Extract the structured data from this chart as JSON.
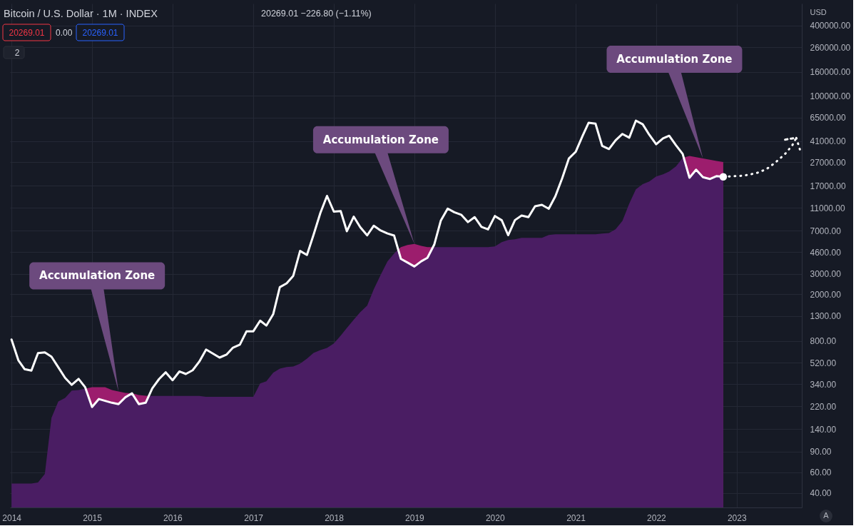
{
  "chart_data": {
    "type": "line",
    "title": "Bitcoin / U.S. Dollar · 1M · INDEX",
    "ylabel": "USD",
    "log": "y",
    "grid": true,
    "line_style": "solid",
    "marker": "none",
    "xlim": [
      "2013-12-25",
      "2023-10-23"
    ],
    "xticks": [
      "2014",
      "2015",
      "2016",
      "2017",
      "2018",
      "2019",
      "2020",
      "2021",
      "2022",
      "2023"
    ],
    "ylim": [
      30,
      615000
    ],
    "yticks": [
      {
        "value": 40,
        "label": "40.00"
      },
      {
        "value": 60,
        "label": "60.00"
      },
      {
        "value": 90,
        "label": "90.00"
      },
      {
        "value": 140,
        "label": "140.00"
      },
      {
        "value": 220,
        "label": "220.00"
      },
      {
        "value": 340,
        "label": "340.00"
      },
      {
        "value": 520,
        "label": "520.00"
      },
      {
        "value": 800,
        "label": "800.00"
      },
      {
        "value": 1300,
        "label": "1300.00"
      },
      {
        "value": 2000,
        "label": "2000.00"
      },
      {
        "value": 3000,
        "label": "3000.00"
      },
      {
        "value": 4600,
        "label": "4600.00"
      },
      {
        "value": 7000,
        "label": "7000.00"
      },
      {
        "value": 11000,
        "label": "11000.00"
      },
      {
        "value": 17000,
        "label": "17000.00"
      },
      {
        "value": 27000,
        "label": "27000.00"
      },
      {
        "value": 41000,
        "label": "41000.00"
      },
      {
        "value": 65000,
        "label": "65000.00"
      },
      {
        "value": 100000,
        "label": "100000.00"
      },
      {
        "value": 160000,
        "label": "160000.00"
      },
      {
        "value": 260000,
        "label": "260000.00"
      },
      {
        "value": 400000,
        "label": "400000.00"
      }
    ],
    "x": [
      "2014-01",
      "2014-02",
      "2014-03",
      "2014-04",
      "2014-05",
      "2014-06",
      "2014-07",
      "2014-08",
      "2014-09",
      "2014-10",
      "2014-11",
      "2014-12",
      "2015-01",
      "2015-02",
      "2015-03",
      "2015-04",
      "2015-05",
      "2015-06",
      "2015-07",
      "2015-08",
      "2015-09",
      "2015-10",
      "2015-11",
      "2015-12",
      "2016-01",
      "2016-02",
      "2016-03",
      "2016-04",
      "2016-05",
      "2016-06",
      "2016-07",
      "2016-08",
      "2016-09",
      "2016-10",
      "2016-11",
      "2016-12",
      "2017-01",
      "2017-02",
      "2017-03",
      "2017-04",
      "2017-05",
      "2017-06",
      "2017-07",
      "2017-08",
      "2017-09",
      "2017-10",
      "2017-11",
      "2017-12",
      "2018-01",
      "2018-02",
      "2018-03",
      "2018-04",
      "2018-05",
      "2018-06",
      "2018-07",
      "2018-08",
      "2018-09",
      "2018-10",
      "2018-11",
      "2018-12",
      "2019-01",
      "2019-02",
      "2019-03",
      "2019-04",
      "2019-05",
      "2019-06",
      "2019-07",
      "2019-08",
      "2019-09",
      "2019-10",
      "2019-11",
      "2019-12",
      "2020-01",
      "2020-02",
      "2020-03",
      "2020-04",
      "2020-05",
      "2020-06",
      "2020-07",
      "2020-08",
      "2020-09",
      "2020-10",
      "2020-11",
      "2020-12",
      "2021-01",
      "2021-02",
      "2021-03",
      "2021-04",
      "2021-05",
      "2021-06",
      "2021-07",
      "2021-08",
      "2021-09",
      "2021-10",
      "2021-11",
      "2021-12",
      "2022-01",
      "2022-02",
      "2022-03",
      "2022-04",
      "2022-05",
      "2022-06",
      "2022-07",
      "2022-08",
      "2022-09",
      "2022-10",
      "2022-11"
    ],
    "series": [
      {
        "type": "area",
        "color": "#9c1d6d",
        "x": [
          "2014-12-03",
          "2015-01",
          "2015-02",
          "2015-03",
          "2015-04",
          "2015-05",
          "2015-06",
          "2015-07",
          "2015-08",
          "2015-09",
          "2015-09-15",
          "2016-06",
          "2018-10-19",
          "2018-11",
          "2018-12",
          "2019-01",
          "2019-02",
          "2019-03",
          "2019-03-26",
          "2020-06",
          "2022-05-06",
          "2022-06",
          "2022-07",
          "2022-08",
          "2022-09",
          "2022-10",
          "2022-11"
        ],
        "values": [
          312,
          321,
          321,
          321,
          303,
          295,
          287,
          285,
          275,
          271,
          270,
          null,
          4820,
          5070,
          5290,
          5390,
          5190,
          5070,
          5070,
          null,
          29600,
          30500,
          29800,
          29100,
          28400,
          27700,
          27100
        ]
      },
      {
        "type": "area",
        "color": "#4a1d63",
        "x": [
          "2014-01",
          "2014-02",
          "2014-03",
          "2014-04",
          "2014-05",
          "2014-06",
          "2014-07",
          "2014-08",
          "2014-09",
          "2014-10",
          "2014-11",
          "2014-12",
          "2014-12-03",
          "2015-01",
          "2015-02",
          "2015-03",
          "2015-04",
          "2015-05",
          "2015-06",
          "2015-07",
          "2015-08",
          "2015-09",
          "2015-09-15",
          "2015-10",
          "2015-11",
          "2015-12",
          "2016-01",
          "2016-02",
          "2016-03",
          "2016-04",
          "2016-05",
          "2016-06",
          "2016-07",
          "2016-08",
          "2016-09",
          "2016-10",
          "2016-11",
          "2016-12",
          "2017-01",
          "2017-02",
          "2017-03",
          "2017-04",
          "2017-05",
          "2017-06",
          "2017-07",
          "2017-08",
          "2017-09",
          "2017-10",
          "2017-11",
          "2017-12",
          "2018-01",
          "2018-02",
          "2018-03",
          "2018-04",
          "2018-05",
          "2018-06",
          "2018-07",
          "2018-08",
          "2018-09",
          "2018-10",
          "2018-10-19",
          "2018-11",
          "2018-12",
          "2019-01",
          "2019-02",
          "2019-03",
          "2019-03-26",
          "2019-04",
          "2019-05",
          "2019-06",
          "2019-07",
          "2019-08",
          "2019-09",
          "2019-10",
          "2019-11",
          "2019-12",
          "2020-01",
          "2020-02",
          "2020-03",
          "2020-04",
          "2020-05",
          "2020-06",
          "2020-07",
          "2020-08",
          "2020-09",
          "2020-10",
          "2020-11",
          "2020-12",
          "2021-01",
          "2021-02",
          "2021-03",
          "2021-04",
          "2021-05",
          "2021-06",
          "2021-07",
          "2021-08",
          "2021-09",
          "2021-10",
          "2021-11",
          "2021-12",
          "2022-01",
          "2022-02",
          "2022-03",
          "2022-04",
          "2022-05",
          "2022-05-06",
          "2022-06",
          "2022-07",
          "2022-08",
          "2022-09",
          "2022-10",
          "2022-11"
        ],
        "values": [
          48,
          48,
          48,
          48,
          49,
          58,
          175,
          242,
          260,
          300,
          303,
          312,
          312,
          217,
          254,
          245,
          236,
          230,
          263,
          284,
          230,
          236,
          270,
          270,
          270,
          270,
          270,
          270,
          270,
          270,
          270,
          265,
          265,
          265,
          265,
          265,
          265,
          265,
          265,
          345,
          360,
          426,
          463,
          477,
          483,
          511,
          563,
          631,
          667,
          696,
          758,
          885,
          1030,
          1210,
          1410,
          1600,
          2210,
          2930,
          3820,
          4460,
          4820,
          4020,
          3740,
          3460,
          3830,
          4100,
          5070,
          5070,
          5070,
          5070,
          5070,
          5070,
          5070,
          5070,
          5070,
          5070,
          5140,
          5590,
          5830,
          5910,
          6080,
          6080,
          6080,
          6080,
          6440,
          6530,
          6530,
          6530,
          6530,
          6530,
          6530,
          6530,
          6620,
          6700,
          7190,
          8510,
          11960,
          15850,
          17500,
          18500,
          20400,
          21300,
          22500,
          24900,
          29400,
          29600,
          19900,
          23300,
          20100,
          19400,
          20500,
          20269.01
        ]
      },
      {
        "color": "#ffffff",
        "values": [
          820,
          545,
          458,
          445,
          628,
          637,
          585,
          475,
          385,
          336,
          378,
          320,
          217,
          254,
          245,
          236,
          230,
          263,
          284,
          230,
          236,
          314,
          377,
          430,
          368,
          437,
          416,
          448,
          531,
          673,
          624,
          575,
          609,
          700,
          742,
          963,
          965,
          1190,
          1080,
          1350,
          2300,
          2480,
          2880,
          4700,
          4340,
          6450,
          9950,
          13900,
          10200,
          10300,
          6930,
          9240,
          7490,
          6390,
          7730,
          7030,
          6630,
          6370,
          4020,
          3740,
          3460,
          3830,
          4100,
          5320,
          8560,
          10820,
          10080,
          9600,
          8300,
          9150,
          7550,
          7190,
          9350,
          8600,
          6410,
          8630,
          9450,
          9140,
          11350,
          11650,
          10780,
          13800,
          19700,
          29000,
          33100,
          45200,
          58800,
          57700,
          37300,
          35000,
          41500,
          47100,
          43800,
          61300,
          57000,
          46300,
          38500,
          43200,
          45500,
          37700,
          31800,
          19900,
          23300,
          20100,
          19400,
          20500,
          20269.01
        ]
      },
      {
        "type": "line",
        "color": "#ffffff",
        "line_style": "dotted",
        "x": [
          "2022-11",
          "2023-02",
          "2023-04",
          "2023-05-15",
          "2023-06-24",
          "2023-08-07",
          "2023-09-09",
          "2023-09-28",
          "2023-08-01",
          "2023-09-28",
          "2023-10-16"
        ],
        "values": [
          20269.01,
          20700,
          21800,
          23500,
          26700,
          31600,
          37400,
          43700,
          41900,
          43700,
          33900
        ]
      },
      {
        "type": "scatter",
        "color": "#ffffff",
        "marker": "circle",
        "x": [
          "2022-11"
        ],
        "values": [
          20269.01
        ]
      }
    ],
    "annotations": [
      "20269.01 −226.80 (−1.11%)",
      "20269.01",
      "0.00",
      "20269.01",
      "2",
      "A",
      {
        "text": "Accumulation Zone",
        "x": "2015-05",
        "y": 295
      },
      {
        "text": "Accumulation Zone",
        "x": "2019-01",
        "y": 5390
      },
      {
        "text": "Accumulation Zone",
        "x": "2022-08",
        "y": 29100
      }
    ]
  }
}
